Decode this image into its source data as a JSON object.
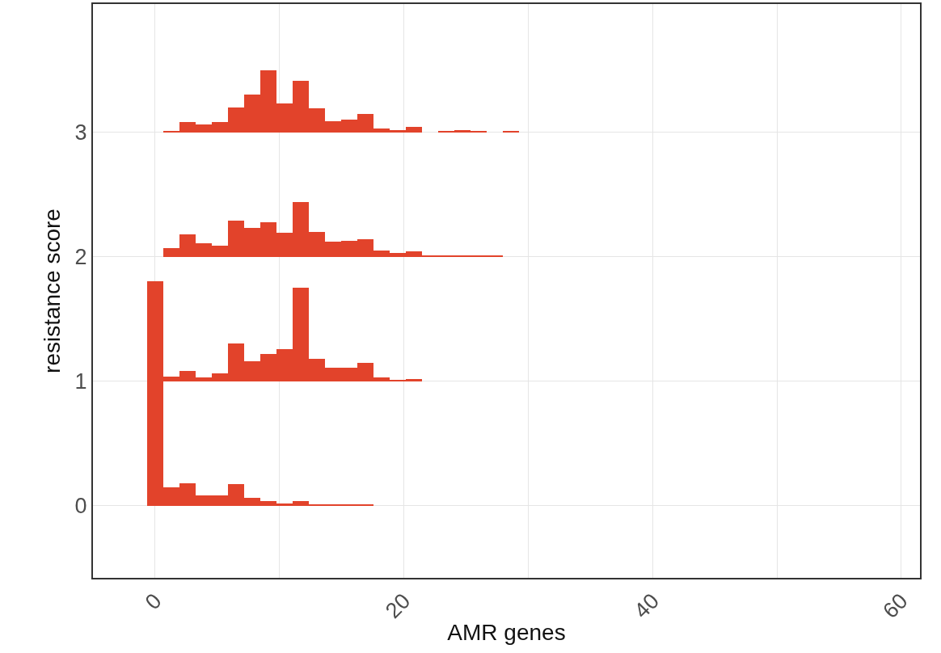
{
  "chart_data": {
    "type": "bar",
    "xlabel": "AMR genes",
    "ylabel": "resistance score",
    "xlim": [
      -5,
      61.5
    ],
    "ylim": [
      -0.58,
      4.03
    ],
    "xticks": [
      0,
      {
        "value": 10,
        "label": null
      },
      20,
      {
        "value": 30,
        "label": null
      },
      40,
      {
        "value": 50,
        "label": null
      },
      60
    ],
    "yticks": [
      0,
      1,
      2,
      3
    ],
    "grid": true,
    "series": [
      {
        "color": "#e2432b",
        "x": [
          0,
          1.3,
          2.6,
          3.9,
          5.2,
          6.5,
          7.8,
          9.1,
          10.4,
          11.7,
          13,
          14.3,
          15.6,
          16.9
        ],
        "base": [
          0,
          0,
          0,
          0,
          0,
          0,
          0,
          0,
          0,
          0,
          0,
          0,
          0,
          0
        ],
        "values": [
          1.8,
          0.15,
          0.18,
          0.08,
          0.08,
          0.17,
          0.06,
          0.04,
          0.02,
          0.04,
          0.01,
          0.01,
          0.01,
          0.01
        ]
      },
      {
        "color": "#e2432b",
        "x": [
          1.3,
          2.6,
          3.9,
          5.2,
          6.5,
          7.8,
          9.1,
          10.4,
          11.7,
          13,
          14.3,
          15.6,
          16.9,
          18.2,
          19.5,
          20.8
        ],
        "base": [
          1,
          1,
          1,
          1,
          1,
          1,
          1,
          1,
          1,
          1,
          1,
          1,
          1,
          1,
          1,
          1
        ],
        "values": [
          0.04,
          0.08,
          0.03,
          0.06,
          0.3,
          0.16,
          0.22,
          0.26,
          0.75,
          0.18,
          0.11,
          0.11,
          0.15,
          0.03,
          0.01,
          0.02
        ]
      },
      {
        "color": "#e2432b",
        "x": [
          1.3,
          2.6,
          3.9,
          5.2,
          6.5,
          7.8,
          9.1,
          10.4,
          11.7,
          13,
          14.3,
          15.6,
          16.9,
          18.2,
          19.5,
          20.8,
          22.1,
          23.4,
          24.7,
          26,
          27.3
        ],
        "base": [
          2,
          2,
          2,
          2,
          2,
          2,
          2,
          2,
          2,
          2,
          2,
          2,
          2,
          2,
          2,
          2,
          2,
          2,
          2,
          2,
          2
        ],
        "values": [
          0.07,
          0.18,
          0.11,
          0.09,
          0.29,
          0.23,
          0.28,
          0.19,
          0.44,
          0.2,
          0.12,
          0.13,
          0.14,
          0.05,
          0.03,
          0.04,
          0.01,
          0.01,
          0.01,
          0.01,
          0.01
        ]
      },
      {
        "color": "#e2432b",
        "x": [
          1.3,
          2.6,
          3.9,
          5.2,
          6.5,
          7.8,
          9.1,
          10.4,
          11.7,
          13,
          14.3,
          15.6,
          16.9,
          18.2,
          19.5,
          20.8,
          23.4,
          24.7,
          26,
          28.6
        ],
        "base": [
          3,
          3,
          3,
          3,
          3,
          3,
          3,
          3,
          3,
          3,
          3,
          3,
          3,
          3,
          3,
          3,
          3,
          3,
          3,
          3
        ],
        "values": [
          0.01,
          0.08,
          0.06,
          0.08,
          0.2,
          0.3,
          0.5,
          0.23,
          0.41,
          0.19,
          0.09,
          0.1,
          0.15,
          0.03,
          0.02,
          0.04,
          0.01,
          0.02,
          0.01,
          0.01
        ]
      }
    ]
  }
}
